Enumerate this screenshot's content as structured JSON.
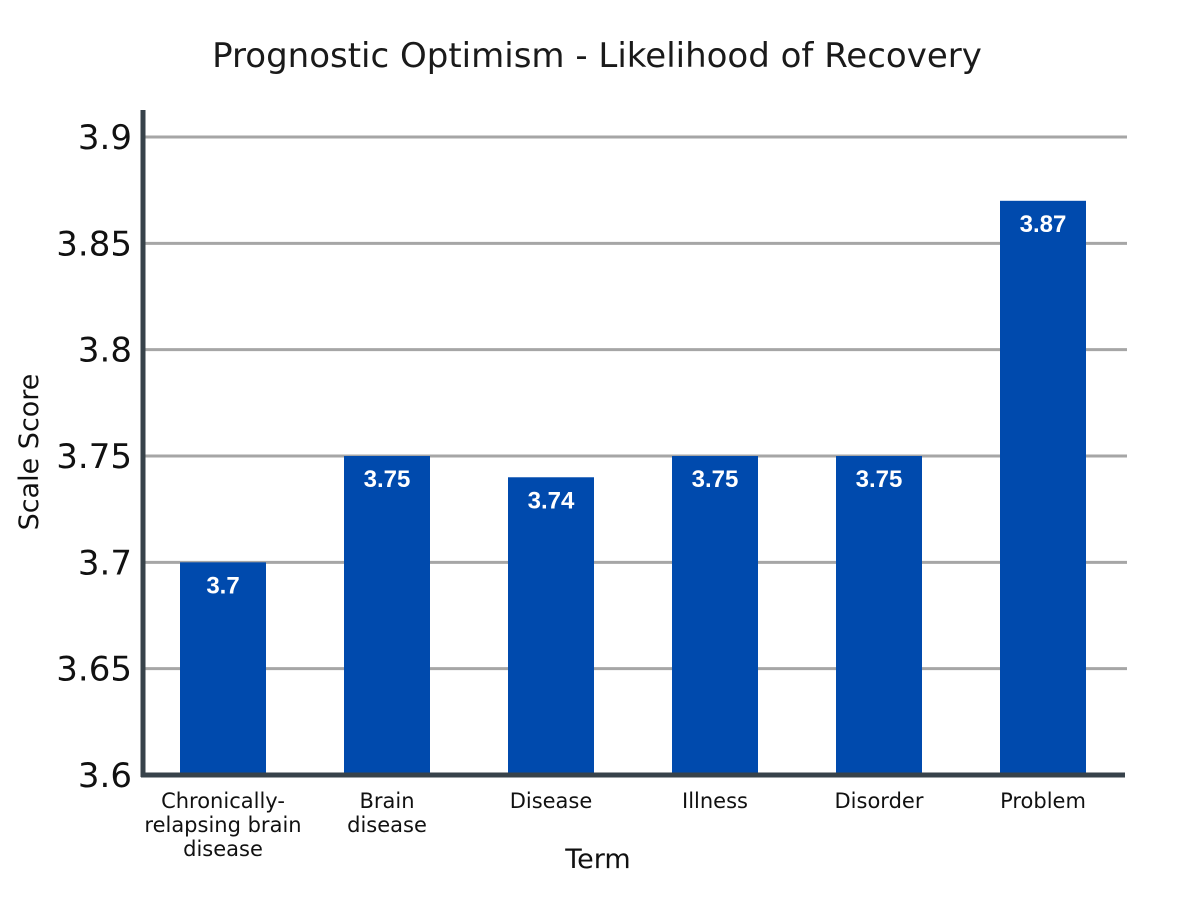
{
  "chart_data": {
    "type": "bar",
    "title": "Prognostic Optimism - Likelihood of Recovery",
    "xlabel": "Term",
    "ylabel": "Scale Score",
    "ylim": [
      3.6,
      3.9
    ],
    "yticks": [
      "3.6",
      "3.65",
      "3.7",
      "3.75",
      "3.8",
      "3.85",
      "3.9"
    ],
    "grid": true,
    "categories": [
      [
        "Chronically-",
        "relapsing brain",
        "disease"
      ],
      [
        "Brain",
        "disease"
      ],
      [
        "Disease"
      ],
      [
        "Illness"
      ],
      [
        "Disorder"
      ],
      [
        "Problem"
      ]
    ],
    "values": [
      3.7,
      3.75,
      3.74,
      3.75,
      3.75,
      3.87
    ],
    "data_labels": [
      "3.7",
      "3.75",
      "3.74",
      "3.75",
      "3.75",
      "3.87"
    ],
    "colors": {
      "bar": "#004aad",
      "grid": "#a6a6a6",
      "axis": "#37424a"
    }
  }
}
